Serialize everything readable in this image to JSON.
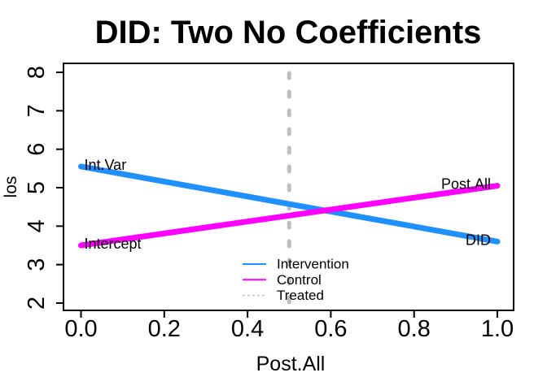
{
  "title": "DID: Two No Coefficients",
  "axes": {
    "x": {
      "label": "Post.All",
      "tick_labels": [
        "0.0",
        "0.2",
        "0.4",
        "0.6",
        "0.8",
        "1.0"
      ],
      "tick_values": [
        0,
        0.2,
        0.4,
        0.6,
        0.8,
        1.0
      ]
    },
    "y": {
      "label": "los",
      "tick_labels": [
        "2",
        "3",
        "4",
        "5",
        "6",
        "7",
        "8"
      ],
      "tick_values": [
        2,
        3,
        4,
        5,
        6,
        7,
        8
      ]
    }
  },
  "colors": {
    "intervention": "#1E90FF",
    "control": "#FF00FF",
    "treated": "#BEBEBE",
    "axis": "#000000"
  },
  "chart_data": {
    "type": "line",
    "title": "DID: Two No Coefficients",
    "xlabel": "Post.All",
    "ylabel": "los",
    "xlim": [
      0,
      1
    ],
    "ylim": [
      2,
      8
    ],
    "grid": false,
    "series": [
      {
        "name": "Intervention",
        "kind": "line",
        "color": "#1E90FF",
        "x": [
          0,
          1
        ],
        "y": [
          5.55,
          3.6
        ],
        "start_label": "Int.Var",
        "end_label": "DID"
      },
      {
        "name": "Control",
        "kind": "line",
        "color": "#FF00FF",
        "x": [
          0,
          1
        ],
        "y": [
          3.5,
          5.05
        ],
        "start_label": "Intercept",
        "end_label": "Post.All"
      },
      {
        "name": "Treated",
        "kind": "vline",
        "color": "#BEBEBE",
        "x": 0.5,
        "style": "dashed"
      }
    ],
    "legend": {
      "position": "bottom-center-inside",
      "entries": [
        {
          "label": "Intervention",
          "color": "#1E90FF",
          "line_style": "solid"
        },
        {
          "label": "Control",
          "color": "#FF00FF",
          "line_style": "solid"
        },
        {
          "label": "Treated",
          "color": "#C3C3C3",
          "line_style": "dotted"
        }
      ]
    }
  }
}
